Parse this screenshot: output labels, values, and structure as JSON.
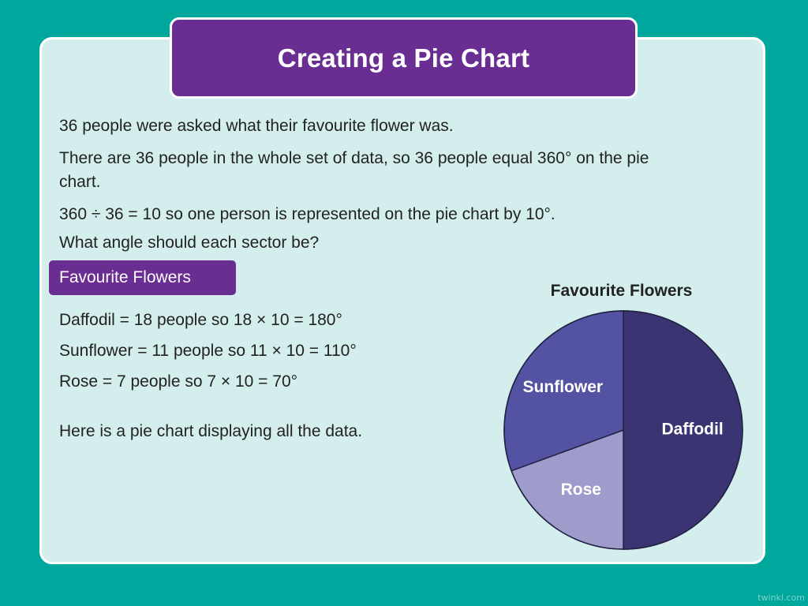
{
  "title": "Creating a Pie Chart",
  "intro": {
    "line1": "36 people were asked what their favourite flower was.",
    "line2a": "There are 36 people in the whole set of data, so 36 people equal 360° on the pie",
    "line2b": "chart.",
    "line3": "360 ÷ 36 = 10 so one person is represented on the pie chart by 10°.",
    "line4": "What angle should each sector be?"
  },
  "badge": "Favourite Flowers",
  "calculations": [
    "Daffodil = 18 people so 18 × 10 = 180°",
    "Sunflower = 11 people so 11 × 10 = 110°",
    "Rose = 7 people so 7 × 10 = 70°"
  ],
  "closing": "Here is a pie chart displaying all the data.",
  "watermark": "twinkl.com",
  "chart_data": {
    "type": "pie",
    "title": "Favourite Flowers",
    "categories": [
      "Daffodil",
      "Rose",
      "Sunflower"
    ],
    "values": [
      18,
      7,
      11
    ],
    "angles": [
      180,
      70,
      110
    ],
    "colors": [
      "#3a3572",
      "#9f9ccc",
      "#5352a3"
    ]
  }
}
